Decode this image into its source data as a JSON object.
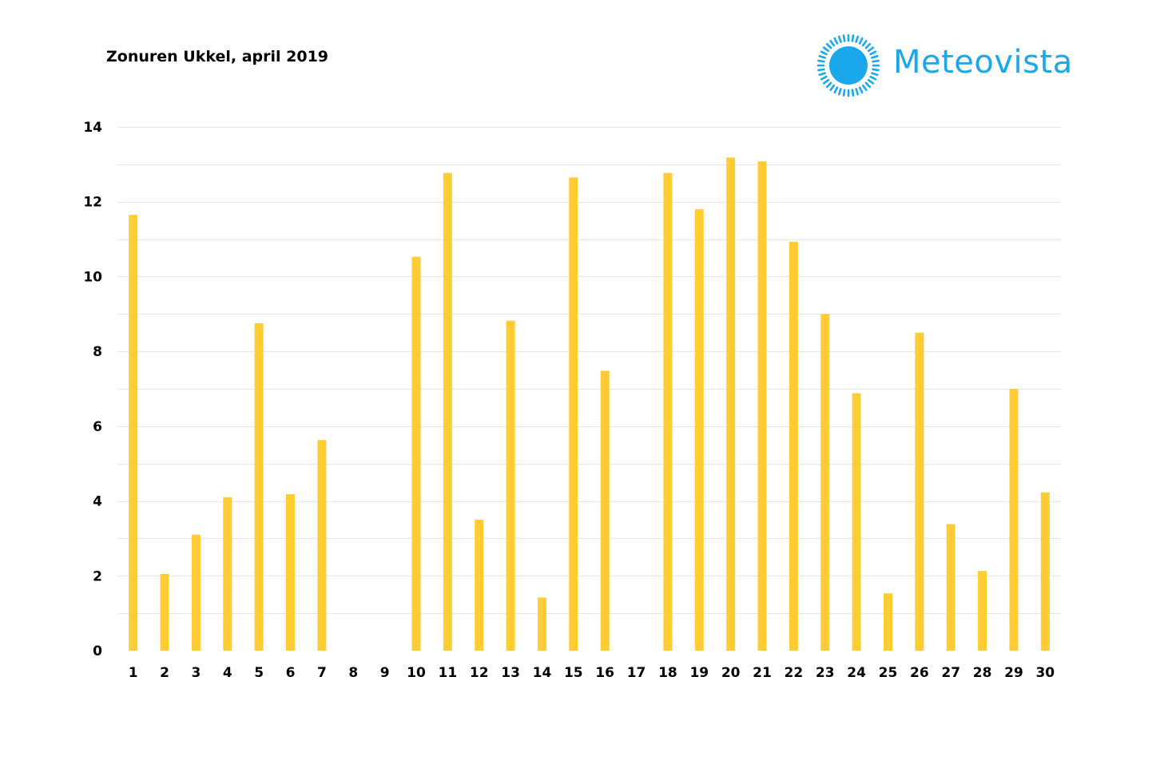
{
  "chart_data": {
    "type": "bar",
    "title": "Zonuren Ukkel, april 2019",
    "xlabel": "",
    "ylabel": "",
    "ylim": [
      0,
      14
    ],
    "yticks": [
      0,
      2,
      4,
      6,
      8,
      10,
      12,
      14
    ],
    "grid": true,
    "categories": [
      "1",
      "2",
      "3",
      "4",
      "5",
      "6",
      "7",
      "8",
      "9",
      "10",
      "11",
      "12",
      "13",
      "14",
      "15",
      "16",
      "17",
      "18",
      "19",
      "20",
      "21",
      "22",
      "23",
      "24",
      "25",
      "26",
      "27",
      "28",
      "29",
      "30"
    ],
    "values": [
      11.65,
      2.05,
      3.1,
      4.1,
      8.75,
      4.18,
      5.63,
      0,
      0,
      10.53,
      12.77,
      3.5,
      8.82,
      1.42,
      12.65,
      7.48,
      0,
      12.77,
      11.8,
      13.18,
      13.08,
      10.93,
      9.0,
      6.88,
      1.53,
      8.5,
      3.38,
      2.13,
      7.0,
      4.23
    ],
    "bar_color": "#FFCC33"
  },
  "logo": {
    "text": "Meteovista",
    "icon": "sun-icon",
    "color": "#1AA7EC"
  },
  "colors": {
    "gridline": "#E6E6E6",
    "text": "#000000"
  }
}
